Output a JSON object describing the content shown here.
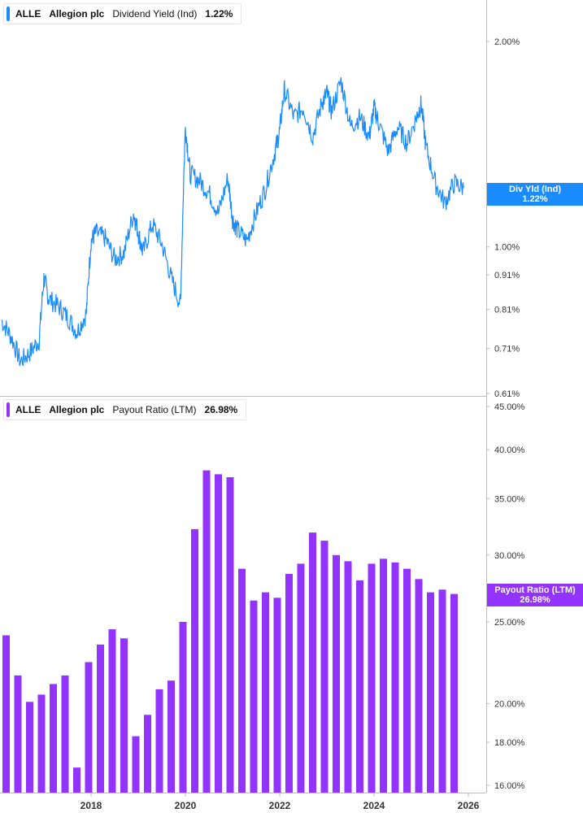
{
  "colors": {
    "yield": "#1a8cff",
    "payout": "#9333ff",
    "axis": "#bbbbbb"
  },
  "legend_top": {
    "ticker": "ALLE",
    "company": "Allegion plc",
    "metric": "Dividend Yield (Ind)",
    "value": "1.22%"
  },
  "legend_bottom": {
    "ticker": "ALLE",
    "company": "Allegion plc",
    "metric": "Payout Ratio (LTM)",
    "value": "26.98%"
  },
  "tag_top": {
    "label": "Div Yld (Ind)",
    "value": "1.22%"
  },
  "tag_bottom": {
    "label": "Payout Ratio (LTM)",
    "value": "26.98%"
  },
  "chart_data": [
    {
      "type": "line",
      "series": [
        {
          "name": "Dividend Yield (Ind)"
        }
      ],
      "scale": "log",
      "ylim": [
        0.61,
        2.3
      ],
      "yticks": [
        "2.00%",
        "1.00%",
        "0.91%",
        "0.81%",
        "0.71%",
        "0.61%"
      ],
      "ytick_values": [
        2.0,
        1.0,
        0.91,
        0.81,
        0.71,
        0.61
      ],
      "x": [
        2016.1,
        2016.3,
        2016.5,
        2016.7,
        2016.9,
        2017.0,
        2017.1,
        2017.3,
        2017.5,
        2017.7,
        2017.9,
        2018.0,
        2018.1,
        2018.3,
        2018.5,
        2018.7,
        2018.9,
        2019.0,
        2019.1,
        2019.3,
        2019.5,
        2019.7,
        2019.9,
        2020.0,
        2020.1,
        2020.3,
        2020.5,
        2020.7,
        2020.9,
        2021.0,
        2021.1,
        2021.3,
        2021.5,
        2021.7,
        2021.9,
        2022.0,
        2022.1,
        2022.3,
        2022.5,
        2022.7,
        2022.9,
        2023.0,
        2023.1,
        2023.3,
        2023.5,
        2023.7,
        2023.9,
        2024.0,
        2024.1,
        2024.3,
        2024.5,
        2024.7,
        2024.9,
        2025.0,
        2025.1,
        2025.3,
        2025.5,
        2025.7,
        2025.9
      ],
      "values": [
        0.78,
        0.74,
        0.68,
        0.7,
        0.73,
        0.9,
        0.84,
        0.82,
        0.79,
        0.75,
        0.8,
        1.02,
        1.05,
        1.03,
        0.96,
        0.98,
        1.12,
        1.05,
        0.98,
        1.08,
        1.01,
        0.9,
        0.82,
        1.5,
        1.28,
        1.25,
        1.2,
        1.12,
        1.26,
        1.1,
        1.06,
        1.02,
        1.12,
        1.22,
        1.38,
        1.48,
        1.7,
        1.55,
        1.6,
        1.45,
        1.63,
        1.68,
        1.58,
        1.75,
        1.5,
        1.55,
        1.45,
        1.6,
        1.52,
        1.38,
        1.5,
        1.42,
        1.55,
        1.62,
        1.4,
        1.24,
        1.16,
        1.24,
        1.22
      ]
    },
    {
      "type": "bar",
      "series": [
        {
          "name": "Payout Ratio (LTM)"
        }
      ],
      "scale": "log",
      "ylim": [
        15.9,
        45.0
      ],
      "yticks": [
        "45.00%",
        "40.00%",
        "35.00%",
        "30.00%",
        "25.00%",
        "20.00%",
        "18.00%",
        "16.00%"
      ],
      "ytick_values": [
        45,
        40,
        35,
        30,
        25,
        20,
        18,
        16
      ],
      "xticks": [
        "2018",
        "2020",
        "2022",
        "2024",
        "2026"
      ],
      "xtick_values": [
        2018,
        2020,
        2022,
        2024,
        2026
      ],
      "x": [
        2016.0,
        2016.25,
        2016.5,
        2016.75,
        2017.0,
        2017.25,
        2017.5,
        2017.75,
        2018.0,
        2018.25,
        2018.5,
        2018.75,
        2019.0,
        2019.25,
        2019.5,
        2019.75,
        2020.0,
        2020.25,
        2020.5,
        2020.75,
        2021.0,
        2021.25,
        2021.5,
        2021.75,
        2022.0,
        2022.25,
        2022.5,
        2022.75,
        2023.0,
        2023.25,
        2023.5,
        2023.75,
        2024.0,
        2024.25,
        2024.5,
        2024.75,
        2025.0,
        2025.25,
        2025.5,
        2025.75
      ],
      "values": [
        24.8,
        24.1,
        21.6,
        20.1,
        20.5,
        21.1,
        21.6,
        16.8,
        22.4,
        23.5,
        24.5,
        23.9,
        18.3,
        19.4,
        20.8,
        21.3,
        25.0,
        32.2,
        37.8,
        37.4,
        37.1,
        28.9,
        26.5,
        27.1,
        26.7,
        28.5,
        29.3,
        31.9,
        31.2,
        30.0,
        29.5,
        28.0,
        29.3,
        29.7,
        29.4,
        28.9,
        28.1,
        27.1,
        27.3,
        26.98
      ]
    }
  ]
}
